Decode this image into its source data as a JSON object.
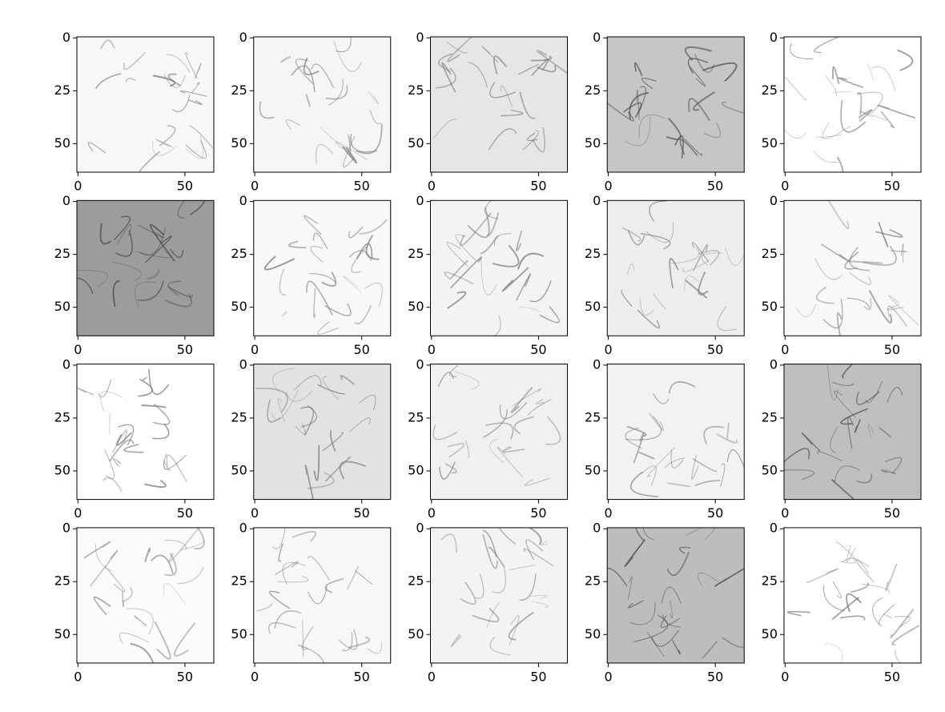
{
  "chart_data": [
    {
      "type": "image",
      "xlim": [
        -0.5,
        63.5
      ],
      "ylim": [
        63.5,
        -0.5
      ],
      "xticks": [
        0,
        50
      ],
      "yticks": [
        0,
        25,
        50
      ]
    },
    {
      "type": "image",
      "xlim": [
        -0.5,
        63.5
      ],
      "ylim": [
        63.5,
        -0.5
      ],
      "xticks": [
        0,
        50
      ],
      "yticks": [
        0,
        25,
        50
      ]
    },
    {
      "type": "image",
      "xlim": [
        -0.5,
        63.5
      ],
      "ylim": [
        63.5,
        -0.5
      ],
      "xticks": [
        0,
        50
      ],
      "yticks": [
        0,
        25,
        50
      ]
    },
    {
      "type": "image",
      "xlim": [
        -0.5,
        63.5
      ],
      "ylim": [
        63.5,
        -0.5
      ],
      "xticks": [
        0,
        50
      ],
      "yticks": [
        0,
        25,
        50
      ]
    },
    {
      "type": "image",
      "xlim": [
        -0.5,
        63.5
      ],
      "ylim": [
        63.5,
        -0.5
      ],
      "xticks": [
        0,
        50
      ],
      "yticks": [
        0,
        25,
        50
      ]
    },
    {
      "type": "image",
      "xlim": [
        -0.5,
        63.5
      ],
      "ylim": [
        63.5,
        -0.5
      ],
      "xticks": [
        0,
        50
      ],
      "yticks": [
        0,
        25,
        50
      ]
    },
    {
      "type": "image",
      "xlim": [
        -0.5,
        63.5
      ],
      "ylim": [
        63.5,
        -0.5
      ],
      "xticks": [
        0,
        50
      ],
      "yticks": [
        0,
        25,
        50
      ]
    },
    {
      "type": "image",
      "xlim": [
        -0.5,
        63.5
      ],
      "ylim": [
        63.5,
        -0.5
      ],
      "xticks": [
        0,
        50
      ],
      "yticks": [
        0,
        25,
        50
      ]
    },
    {
      "type": "image",
      "xlim": [
        -0.5,
        63.5
      ],
      "ylim": [
        63.5,
        -0.5
      ],
      "xticks": [
        0,
        50
      ],
      "yticks": [
        0,
        25,
        50
      ]
    },
    {
      "type": "image",
      "xlim": [
        -0.5,
        63.5
      ],
      "ylim": [
        63.5,
        -0.5
      ],
      "xticks": [
        0,
        50
      ],
      "yticks": [
        0,
        25,
        50
      ]
    },
    {
      "type": "image",
      "xlim": [
        -0.5,
        63.5
      ],
      "ylim": [
        63.5,
        -0.5
      ],
      "xticks": [
        0,
        50
      ],
      "yticks": [
        0,
        25,
        50
      ]
    },
    {
      "type": "image",
      "xlim": [
        -0.5,
        63.5
      ],
      "ylim": [
        63.5,
        -0.5
      ],
      "xticks": [
        0,
        50
      ],
      "yticks": [
        0,
        25,
        50
      ]
    },
    {
      "type": "image",
      "xlim": [
        -0.5,
        63.5
      ],
      "ylim": [
        63.5,
        -0.5
      ],
      "xticks": [
        0,
        50
      ],
      "yticks": [
        0,
        25,
        50
      ]
    },
    {
      "type": "image",
      "xlim": [
        -0.5,
        63.5
      ],
      "ylim": [
        63.5,
        -0.5
      ],
      "xticks": [
        0,
        50
      ],
      "yticks": [
        0,
        25,
        50
      ]
    },
    {
      "type": "image",
      "xlim": [
        -0.5,
        63.5
      ],
      "ylim": [
        63.5,
        -0.5
      ],
      "xticks": [
        0,
        50
      ],
      "yticks": [
        0,
        25,
        50
      ]
    },
    {
      "type": "image",
      "xlim": [
        -0.5,
        63.5
      ],
      "ylim": [
        63.5,
        -0.5
      ],
      "xticks": [
        0,
        50
      ],
      "yticks": [
        0,
        25,
        50
      ]
    },
    {
      "type": "image",
      "xlim": [
        -0.5,
        63.5
      ],
      "ylim": [
        63.5,
        -0.5
      ],
      "xticks": [
        0,
        50
      ],
      "yticks": [
        0,
        25,
        50
      ]
    },
    {
      "type": "image",
      "xlim": [
        -0.5,
        63.5
      ],
      "ylim": [
        63.5,
        -0.5
      ],
      "xticks": [
        0,
        50
      ],
      "yticks": [
        0,
        25,
        50
      ]
    },
    {
      "type": "image",
      "xlim": [
        -0.5,
        63.5
      ],
      "ylim": [
        63.5,
        -0.5
      ],
      "xticks": [
        0,
        50
      ],
      "yticks": [
        0,
        25,
        50
      ]
    },
    {
      "type": "image",
      "xlim": [
        -0.5,
        63.5
      ],
      "ylim": [
        63.5,
        -0.5
      ],
      "xticks": [
        0,
        50
      ],
      "yticks": [
        0,
        25,
        50
      ]
    }
  ]
}
